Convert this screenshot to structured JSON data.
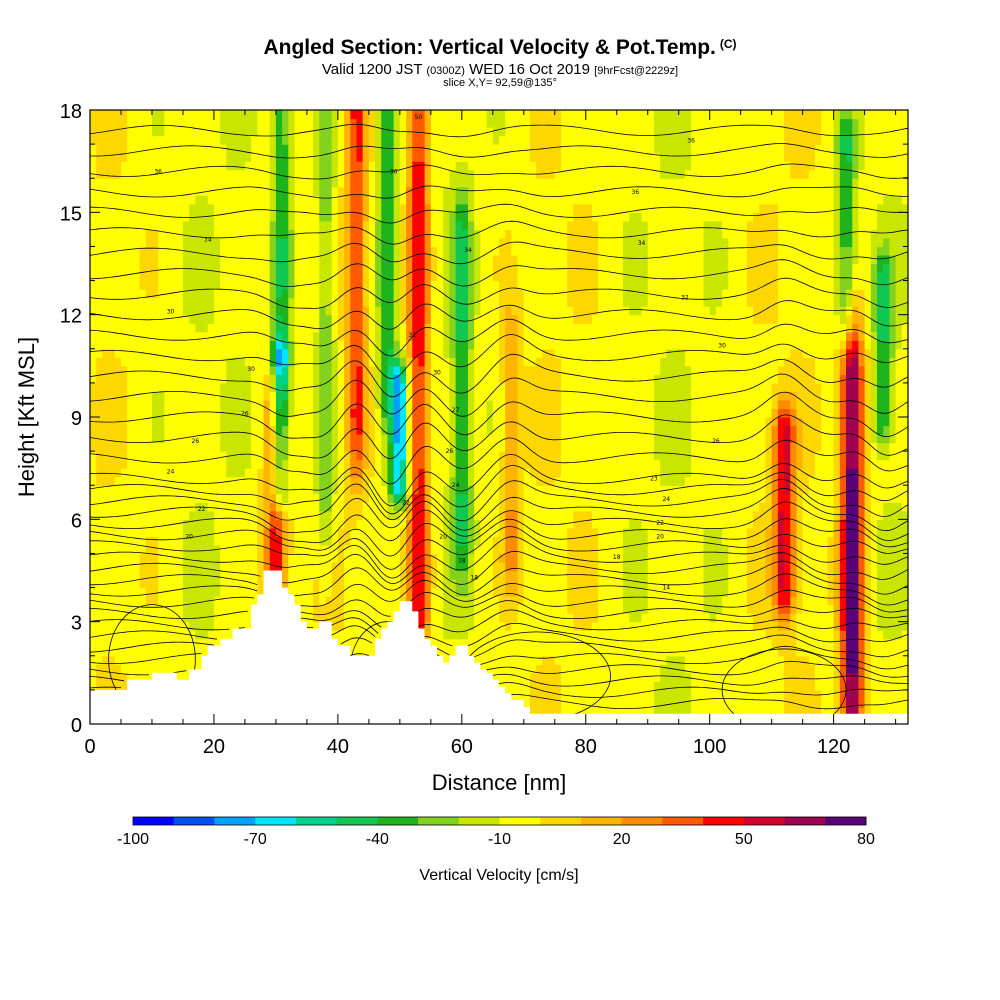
{
  "title": {
    "main": "Angled Section: Vertical Velocity & Pot.Temp.",
    "unit_tag": "(C)",
    "valid_prefix": "Valid 1200 JST",
    "utc": "(0300Z)",
    "date": "WED 16 Oct 2019",
    "forecast": "[9hrFcst@2229z]",
    "slice": "slice X,Y= 92,59@135°"
  },
  "chart_data": {
    "type": "heatmap",
    "xlabel": "Distance [nm]",
    "ylabel": "Height [Kft MSL]",
    "xlim": [
      0,
      132
    ],
    "ylim": [
      0,
      18
    ],
    "xticks": [
      0,
      20,
      40,
      60,
      80,
      100,
      120
    ],
    "yticks": [
      0,
      3,
      6,
      9,
      12,
      15,
      18
    ],
    "colorbar": {
      "label": "Vertical Velocity [cm/s]",
      "range": [
        -100,
        80
      ],
      "step": 10,
      "tick_labels": [
        -100,
        -70,
        -40,
        -10,
        20,
        50,
        80
      ],
      "colors": [
        "#0000ff",
        "#0050f0",
        "#00a0ff",
        "#00e6ff",
        "#00d28c",
        "#10c850",
        "#1eb41e",
        "#82d21e",
        "#c8e600",
        "#ffff00",
        "#ffd700",
        "#ffb400",
        "#ff8c00",
        "#ff5a00",
        "#ff0000",
        "#d2002d",
        "#a00050",
        "#5a0078"
      ]
    },
    "background_value": -5,
    "vertical_velocity_features": [
      {
        "x": 30,
        "kind": "updraft",
        "peak_cm_s": 50,
        "z_range": [
          4.5,
          9.5
        ]
      },
      {
        "x": 30.5,
        "kind": "downdraft",
        "peak_cm_s": -70,
        "z_range": [
          7,
          10.5
        ]
      },
      {
        "x": 31,
        "kind": "downdraft",
        "peak_cm_s": -40,
        "z_range": [
          10,
          18
        ]
      },
      {
        "x": 38,
        "kind": "downdraft",
        "peak_cm_s": -30,
        "z_range": [
          7,
          18
        ]
      },
      {
        "x": 43,
        "kind": "updraft",
        "peak_cm_s": 40,
        "z_range": [
          9,
          18
        ]
      },
      {
        "x": 50,
        "kind": "downdraft",
        "peak_cm_s": -70,
        "z_range": [
          7,
          10
        ]
      },
      {
        "x": 48,
        "kind": "downdraft",
        "peak_cm_s": -40,
        "z_range": [
          10,
          18
        ]
      },
      {
        "x": 53,
        "kind": "updraft",
        "peak_cm_s": 50,
        "z_range": [
          3.5,
          18
        ]
      },
      {
        "x": 60,
        "kind": "downdraft",
        "peak_cm_s": -40,
        "z_range": [
          6,
          14
        ]
      },
      {
        "x": 68,
        "kind": "updraft",
        "peak_cm_s": 20,
        "z_range": [
          5,
          11
        ]
      },
      {
        "x": 112,
        "kind": "updraft",
        "peak_cm_s": 50,
        "z_range": [
          4,
          8.5
        ]
      },
      {
        "x": 123,
        "kind": "updraft",
        "peak_cm_s": 80,
        "z_range": [
          1,
          10
        ]
      },
      {
        "x": 122,
        "kind": "downdraft",
        "peak_cm_s": -40,
        "z_range": [
          12,
          17
        ]
      },
      {
        "x": 128,
        "kind": "downdraft",
        "peak_cm_s": -40,
        "z_range": [
          9,
          13
        ]
      }
    ],
    "terrain": [
      [
        0,
        1
      ],
      [
        5,
        1
      ],
      [
        6,
        1.3
      ],
      [
        9,
        1.3
      ],
      [
        10,
        1.5
      ],
      [
        13,
        1.5
      ],
      [
        14,
        1.3
      ],
      [
        15,
        1.3
      ],
      [
        16,
        1.6
      ],
      [
        17,
        1.6
      ],
      [
        18,
        2
      ],
      [
        19,
        2.3
      ],
      [
        20,
        2.3
      ],
      [
        21,
        2.5
      ],
      [
        22,
        2.5
      ],
      [
        23,
        2.8
      ],
      [
        25,
        2.8
      ],
      [
        26,
        3.5
      ],
      [
        27,
        3.8
      ],
      [
        28,
        4.5
      ],
      [
        30,
        4.5
      ],
      [
        31,
        4
      ],
      [
        32,
        3.8
      ],
      [
        33,
        3.5
      ],
      [
        34,
        3
      ],
      [
        35,
        2.8
      ],
      [
        36,
        2.8
      ],
      [
        37,
        3
      ],
      [
        38,
        3
      ],
      [
        39,
        2.5
      ],
      [
        40,
        2.3
      ],
      [
        42,
        2
      ],
      [
        45,
        2
      ],
      [
        46,
        2.5
      ],
      [
        47,
        2.8
      ],
      [
        48,
        3
      ],
      [
        49,
        3.3
      ],
      [
        50,
        3.6
      ],
      [
        51,
        3.6
      ],
      [
        52,
        3.3
      ],
      [
        53,
        2.8
      ],
      [
        54,
        2.5
      ],
      [
        55,
        2.3
      ],
      [
        56,
        2
      ],
      [
        57,
        1.8
      ],
      [
        58,
        2
      ],
      [
        59,
        2.3
      ],
      [
        60,
        2.3
      ],
      [
        61,
        2
      ],
      [
        62,
        1.8
      ],
      [
        63,
        1.6
      ],
      [
        64,
        1.5
      ],
      [
        65,
        1.3
      ],
      [
        66,
        1.1
      ],
      [
        67,
        0.9
      ],
      [
        68,
        0.7
      ],
      [
        70,
        0.5
      ],
      [
        71,
        0.3
      ],
      [
        132,
        0.3
      ]
    ],
    "theta_contours": {
      "interval_c": 2,
      "sample_labels": [
        {
          "x": 53,
          "z": 17.8,
          "text": "50"
        },
        {
          "x": 97,
          "z": 17.1,
          "text": "36"
        },
        {
          "x": 11,
          "z": 16.2,
          "text": "36"
        },
        {
          "x": 49,
          "z": 16.2,
          "text": "36"
        },
        {
          "x": 88,
          "z": 15.6,
          "text": "36"
        },
        {
          "x": 19,
          "z": 14.2,
          "text": "34"
        },
        {
          "x": 61,
          "z": 13.9,
          "text": "34"
        },
        {
          "x": 89,
          "z": 14.1,
          "text": "34"
        },
        {
          "x": 13,
          "z": 12.1,
          "text": "30"
        },
        {
          "x": 96,
          "z": 12.5,
          "text": "32"
        },
        {
          "x": 52,
          "z": 11.4,
          "text": "32"
        },
        {
          "x": 102,
          "z": 11.1,
          "text": "30"
        },
        {
          "x": 26,
          "z": 10.4,
          "text": "30"
        },
        {
          "x": 56,
          "z": 10.3,
          "text": "30"
        },
        {
          "x": 25,
          "z": 9.1,
          "text": "26"
        },
        {
          "x": 59,
          "z": 9.2,
          "text": "27"
        },
        {
          "x": 17,
          "z": 8.3,
          "text": "26"
        },
        {
          "x": 101,
          "z": 8.3,
          "text": "26"
        },
        {
          "x": 58,
          "z": 8.0,
          "text": "26"
        },
        {
          "x": 13,
          "z": 7.4,
          "text": "24"
        },
        {
          "x": 91,
          "z": 7.2,
          "text": "23"
        },
        {
          "x": 59,
          "z": 7.0,
          "text": "24"
        },
        {
          "x": 93,
          "z": 6.6,
          "text": "24"
        },
        {
          "x": 18,
          "z": 6.3,
          "text": "22"
        },
        {
          "x": 51,
          "z": 6.5,
          "text": "22"
        },
        {
          "x": 92,
          "z": 5.9,
          "text": "22"
        },
        {
          "x": 16,
          "z": 5.5,
          "text": "20"
        },
        {
          "x": 57,
          "z": 5.5,
          "text": "20"
        },
        {
          "x": 92,
          "z": 5.5,
          "text": "20"
        },
        {
          "x": 60,
          "z": 4.8,
          "text": "18"
        },
        {
          "x": 85,
          "z": 4.9,
          "text": "18"
        },
        {
          "x": 62,
          "z": 4.3,
          "text": "18"
        },
        {
          "x": 93,
          "z": 4.0,
          "text": "14"
        }
      ]
    }
  }
}
